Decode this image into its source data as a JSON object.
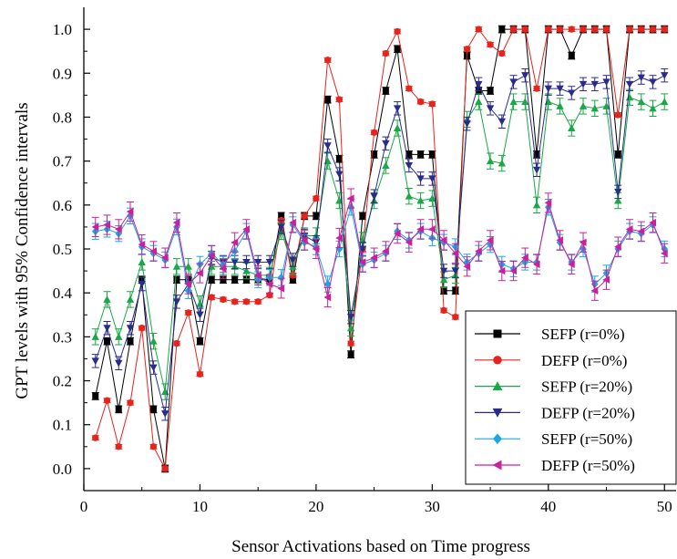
{
  "chart_data": {
    "type": "line",
    "title": "",
    "xlabel": "Sensor Activations based on Time progress",
    "ylabel": "GPT levels with 95% Confidence intervals",
    "xlim": [
      0,
      51
    ],
    "ylim": [
      -0.05,
      1.05
    ],
    "x_ticks": [
      "0",
      "10",
      "20",
      "30",
      "40",
      "50"
    ],
    "y_ticks": [
      "0.0",
      "0.1",
      "0.2",
      "0.3",
      "0.4",
      "0.5",
      "0.6",
      "0.7",
      "0.8",
      "0.9",
      "1.0"
    ],
    "error_bars": true,
    "legend_position": "bottom-right",
    "x": [
      1,
      2,
      3,
      4,
      5,
      6,
      7,
      8,
      9,
      10,
      11,
      12,
      13,
      14,
      15,
      16,
      17,
      18,
      19,
      20,
      21,
      22,
      23,
      24,
      25,
      26,
      27,
      28,
      29,
      30,
      31,
      32,
      33,
      34,
      35,
      36,
      37,
      38,
      39,
      40,
      41,
      42,
      43,
      44,
      45,
      46,
      47,
      48,
      49,
      50
    ],
    "series": [
      {
        "name": "SEFP (r=0%)",
        "color": "#000000",
        "marker": "square",
        "values": [
          0.165,
          0.29,
          0.135,
          0.29,
          0.43,
          0.135,
          0.0,
          0.43,
          0.43,
          0.29,
          0.43,
          0.43,
          0.43,
          0.43,
          0.43,
          0.43,
          0.575,
          0.43,
          0.575,
          0.575,
          0.84,
          0.705,
          0.26,
          0.575,
          0.715,
          0.86,
          0.955,
          0.715,
          0.715,
          0.715,
          0.405,
          0.405,
          0.94,
          0.86,
          0.86,
          1.0,
          1.0,
          1.0,
          0.715,
          1.0,
          1.0,
          0.94,
          1.0,
          1.0,
          1.0,
          0.715,
          1.0,
          1.0,
          1.0,
          1.0
        ],
        "errors": [
          0.008,
          0.008,
          0.008,
          0.008,
          0.008,
          0.008,
          0.008,
          0.008,
          0.008,
          0.008,
          0.008,
          0.008,
          0.008,
          0.008,
          0.008,
          0.008,
          0.008,
          0.008,
          0.008,
          0.008,
          0.008,
          0.008,
          0.008,
          0.008,
          0.008,
          0.008,
          0.008,
          0.008,
          0.008,
          0.008,
          0.008,
          0.008,
          0.008,
          0.008,
          0.008,
          0.008,
          0.008,
          0.008,
          0.008,
          0.008,
          0.008,
          0.008,
          0.008,
          0.008,
          0.008,
          0.008,
          0.008,
          0.008,
          0.008,
          0.008
        ]
      },
      {
        "name": "DEFP (r=0%)",
        "color": "#e8231c",
        "marker": "circle",
        "values": [
          0.07,
          0.155,
          0.05,
          0.15,
          0.32,
          0.05,
          0.0,
          0.285,
          0.355,
          0.215,
          0.39,
          0.385,
          0.38,
          0.38,
          0.38,
          0.395,
          0.565,
          0.44,
          0.575,
          0.615,
          0.93,
          0.84,
          0.285,
          0.5,
          0.765,
          0.945,
          0.995,
          0.865,
          0.835,
          0.83,
          0.36,
          0.345,
          0.955,
          1.0,
          0.965,
          0.945,
          1.0,
          1.0,
          0.865,
          1.0,
          1.0,
          1.0,
          1.0,
          1.0,
          1.0,
          0.805,
          1.0,
          1.0,
          1.0,
          1.0
        ],
        "errors": [
          0.005,
          0.005,
          0.005,
          0.005,
          0.005,
          0.005,
          0.005,
          0.005,
          0.005,
          0.005,
          0.005,
          0.005,
          0.005,
          0.005,
          0.005,
          0.005,
          0.005,
          0.005,
          0.005,
          0.005,
          0.005,
          0.005,
          0.005,
          0.005,
          0.005,
          0.005,
          0.005,
          0.005,
          0.005,
          0.005,
          0.005,
          0.005,
          0.005,
          0.005,
          0.005,
          0.005,
          0.005,
          0.005,
          0.005,
          0.005,
          0.005,
          0.005,
          0.005,
          0.005,
          0.005,
          0.005,
          0.005,
          0.005,
          0.005,
          0.005
        ]
      },
      {
        "name": "SEFP (r=20%)",
        "color": "#19a845",
        "marker": "triangle-up",
        "values": [
          0.3,
          0.385,
          0.3,
          0.385,
          0.47,
          0.29,
          0.175,
          0.46,
          0.46,
          0.375,
          0.46,
          0.46,
          0.46,
          0.45,
          0.44,
          0.44,
          0.54,
          0.46,
          0.53,
          0.53,
          0.7,
          0.61,
          0.32,
          0.52,
          0.61,
          0.69,
          0.775,
          0.62,
          0.61,
          0.615,
          0.43,
          0.44,
          0.795,
          0.835,
          0.7,
          0.695,
          0.835,
          0.835,
          0.6,
          0.835,
          0.825,
          0.775,
          0.825,
          0.82,
          0.825,
          0.61,
          0.845,
          0.835,
          0.82,
          0.835
        ],
        "errors": [
          0.018,
          0.018,
          0.018,
          0.018,
          0.018,
          0.018,
          0.018,
          0.018,
          0.018,
          0.018,
          0.018,
          0.018,
          0.018,
          0.018,
          0.018,
          0.018,
          0.018,
          0.018,
          0.018,
          0.018,
          0.018,
          0.018,
          0.018,
          0.018,
          0.018,
          0.018,
          0.018,
          0.018,
          0.018,
          0.018,
          0.018,
          0.018,
          0.018,
          0.018,
          0.018,
          0.018,
          0.018,
          0.018,
          0.018,
          0.018,
          0.018,
          0.018,
          0.018,
          0.018,
          0.018,
          0.018,
          0.018,
          0.018,
          0.018,
          0.018
        ]
      },
      {
        "name": "DEFP (r=20%)",
        "color": "#2a2c8c",
        "marker": "triangle-down",
        "values": [
          0.245,
          0.32,
          0.24,
          0.32,
          0.42,
          0.23,
          0.125,
          0.38,
          0.42,
          0.35,
          0.48,
          0.47,
          0.47,
          0.47,
          0.47,
          0.47,
          0.55,
          0.475,
          0.53,
          0.515,
          0.735,
          0.67,
          0.345,
          0.5,
          0.62,
          0.74,
          0.82,
          0.69,
          0.66,
          0.66,
          0.45,
          0.45,
          0.785,
          0.875,
          0.82,
          0.79,
          0.88,
          0.895,
          0.68,
          0.865,
          0.865,
          0.855,
          0.875,
          0.875,
          0.88,
          0.63,
          0.875,
          0.89,
          0.88,
          0.895
        ],
        "errors": [
          0.015,
          0.015,
          0.015,
          0.015,
          0.015,
          0.015,
          0.015,
          0.015,
          0.015,
          0.015,
          0.015,
          0.015,
          0.015,
          0.015,
          0.015,
          0.015,
          0.015,
          0.015,
          0.015,
          0.015,
          0.015,
          0.015,
          0.015,
          0.015,
          0.015,
          0.015,
          0.015,
          0.015,
          0.015,
          0.015,
          0.015,
          0.015,
          0.015,
          0.015,
          0.015,
          0.015,
          0.015,
          0.015,
          0.015,
          0.015,
          0.015,
          0.015,
          0.015,
          0.015,
          0.015,
          0.015,
          0.015,
          0.015,
          0.015,
          0.015
        ]
      },
      {
        "name": "SEFP (r=50%)",
        "color": "#1aa7e8",
        "marker": "diamond",
        "values": [
          0.54,
          0.545,
          0.535,
          0.575,
          0.505,
          0.49,
          0.475,
          0.55,
          0.405,
          0.465,
          0.49,
          0.465,
          0.495,
          0.54,
          0.43,
          0.435,
          0.435,
          0.555,
          0.515,
          0.505,
          0.42,
          0.5,
          0.595,
          0.465,
          0.475,
          0.49,
          0.54,
          0.52,
          0.54,
          0.525,
          0.515,
          0.505,
          0.47,
          0.49,
          0.51,
          0.465,
          0.455,
          0.47,
          0.47,
          0.595,
          0.515,
          0.47,
          0.5,
          0.42,
          0.445,
          0.5,
          0.54,
          0.535,
          0.555,
          0.5
        ],
        "errors": [
          0.018,
          0.018,
          0.018,
          0.018,
          0.018,
          0.018,
          0.018,
          0.018,
          0.018,
          0.018,
          0.018,
          0.018,
          0.018,
          0.018,
          0.018,
          0.018,
          0.018,
          0.018,
          0.018,
          0.018,
          0.018,
          0.018,
          0.018,
          0.018,
          0.018,
          0.018,
          0.018,
          0.018,
          0.018,
          0.018,
          0.018,
          0.018,
          0.018,
          0.018,
          0.018,
          0.018,
          0.018,
          0.018,
          0.018,
          0.018,
          0.018,
          0.018,
          0.018,
          0.018,
          0.018,
          0.018,
          0.018,
          0.018,
          0.018,
          0.018
        ]
      },
      {
        "name": "DEFP (r=50%)",
        "color": "#cc1f9c",
        "marker": "triangle-left",
        "values": [
          0.55,
          0.555,
          0.545,
          0.585,
          0.51,
          0.495,
          0.48,
          0.56,
          0.42,
          0.445,
          0.485,
          0.455,
          0.515,
          0.545,
          0.44,
          0.42,
          0.41,
          0.56,
          0.52,
          0.5,
          0.39,
          0.525,
          0.615,
          0.47,
          0.48,
          0.495,
          0.535,
          0.515,
          0.545,
          0.545,
          0.52,
          0.49,
          0.46,
          0.495,
          0.52,
          0.45,
          0.45,
          0.48,
          0.465,
          0.605,
          0.52,
          0.465,
          0.515,
          0.405,
          0.43,
          0.505,
          0.545,
          0.54,
          0.56,
          0.49
        ],
        "errors": [
          0.022,
          0.022,
          0.022,
          0.022,
          0.022,
          0.022,
          0.022,
          0.022,
          0.022,
          0.022,
          0.022,
          0.022,
          0.022,
          0.022,
          0.022,
          0.022,
          0.022,
          0.022,
          0.022,
          0.022,
          0.022,
          0.022,
          0.022,
          0.022,
          0.022,
          0.022,
          0.022,
          0.022,
          0.022,
          0.022,
          0.022,
          0.022,
          0.022,
          0.022,
          0.022,
          0.022,
          0.022,
          0.022,
          0.022,
          0.022,
          0.022,
          0.022,
          0.022,
          0.022,
          0.022,
          0.022,
          0.022,
          0.022,
          0.022,
          0.022
        ]
      }
    ]
  }
}
